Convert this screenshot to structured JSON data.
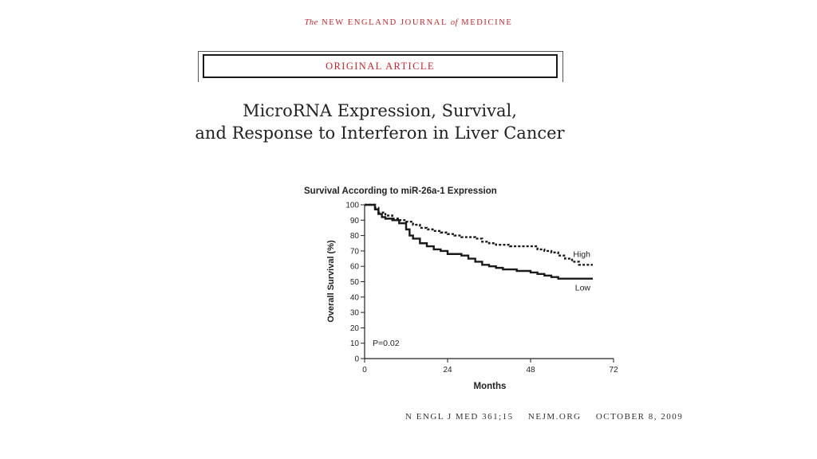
{
  "header": {
    "the": "The",
    "journal_part1": "NEW ENGLAND JOURNAL",
    "of": "of",
    "journal_part2": "MEDICINE"
  },
  "article_type": "ORIGINAL ARTICLE",
  "title": {
    "line1": "MicroRNA Expression, Survival,",
    "line2": "and Response to Interferon in Liver Cancer"
  },
  "chart_data": {
    "type": "line",
    "title": "Survival According to miR-26a-1 Expression",
    "xlabel": "Months",
    "ylabel": "Overall Survival (%)",
    "xlim": [
      0,
      72
    ],
    "ylim": [
      0,
      100
    ],
    "xticks": [
      0,
      24,
      48,
      72
    ],
    "yticks": [
      0,
      10,
      20,
      30,
      40,
      50,
      60,
      70,
      80,
      90,
      100
    ],
    "annotation": "P=0.02",
    "grid": false,
    "series": [
      {
        "name": "High",
        "style": "dotted",
        "color": "#1a1a1a",
        "x": [
          0,
          2,
          3,
          4,
          6,
          8,
          10,
          12,
          14,
          16,
          18,
          20,
          22,
          24,
          26,
          28,
          30,
          32,
          34,
          36,
          38,
          40,
          42,
          44,
          46,
          48,
          50,
          52,
          54,
          56,
          58,
          60,
          62,
          64,
          66
        ],
        "y": [
          100,
          100,
          98,
          95,
          93,
          91,
          90,
          89,
          87,
          85,
          84,
          83,
          82,
          81,
          80,
          79,
          79,
          78,
          76,
          75,
          74,
          74,
          73,
          73,
          73,
          73,
          71,
          70,
          69,
          67,
          65,
          63,
          61,
          61,
          61
        ]
      },
      {
        "name": "Low",
        "style": "solid",
        "color": "#1a1a1a",
        "x": [
          0,
          2,
          3,
          4,
          5,
          6,
          8,
          10,
          12,
          13,
          14,
          16,
          18,
          20,
          22,
          24,
          26,
          28,
          30,
          32,
          34,
          36,
          38,
          40,
          42,
          44,
          46,
          48,
          50,
          52,
          54,
          56,
          58,
          60,
          62,
          64,
          66
        ],
        "y": [
          100,
          100,
          97,
          94,
          92,
          91,
          90,
          88,
          84,
          80,
          78,
          75,
          73,
          71,
          70,
          68,
          68,
          67,
          65,
          63,
          61,
          60,
          59,
          58,
          58,
          57,
          57,
          56,
          55,
          54,
          53,
          52,
          52,
          52,
          52,
          52,
          52
        ]
      }
    ]
  },
  "footer": {
    "citation": "N ENGL J MED 361;15",
    "site": "NEJM.ORG",
    "date": "OCTOBER 8, 2009"
  }
}
